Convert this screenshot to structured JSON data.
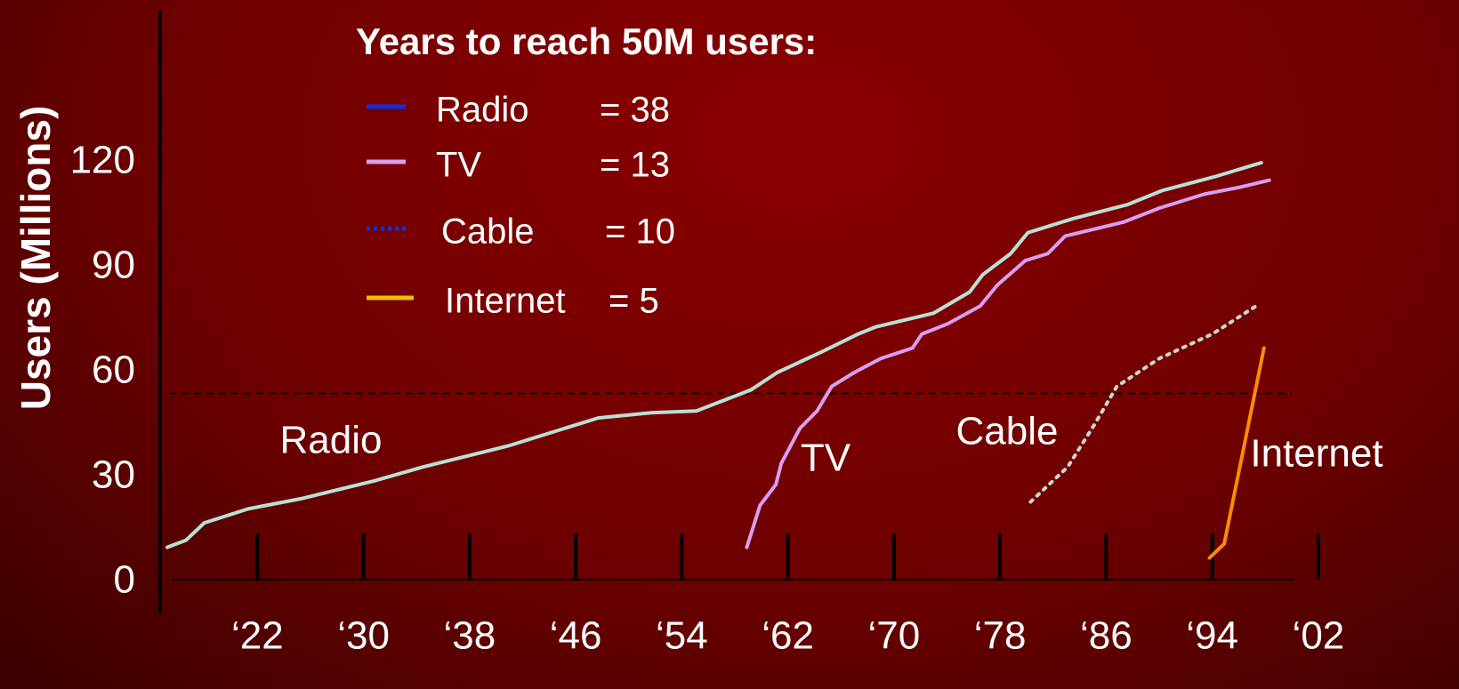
{
  "chart_data": {
    "type": "line",
    "legend_title": "Years to reach 50M users:",
    "ylabel": "Users (Millions)",
    "xlim": [
      1915,
      2001
    ],
    "ylim": [
      0,
      120
    ],
    "yticks": [
      0,
      30,
      60,
      90,
      120
    ],
    "xticks": [
      {
        "value": 1922,
        "label": "‘22"
      },
      {
        "value": 1930,
        "label": "‘30"
      },
      {
        "value": 1938,
        "label": "‘38"
      },
      {
        "value": 1946,
        "label": "‘46"
      },
      {
        "value": 1954,
        "label": "‘54"
      },
      {
        "value": 1962,
        "label": "‘62"
      },
      {
        "value": 1970,
        "label": "‘70"
      },
      {
        "value": 1978,
        "label": "‘78"
      },
      {
        "value": 1986,
        "label": "‘86"
      },
      {
        "value": 1994,
        "label": "‘94"
      },
      {
        "value": 2002,
        "label": "‘02"
      }
    ],
    "reference_line": 54,
    "series": [
      {
        "name": "Radio",
        "legend_value": "= 38",
        "color": "#b8e0d8",
        "legend_color": "#1030e0",
        "dash": false,
        "x": [
          1915.2,
          1916.6,
          1918,
          1921.3,
          1925.4,
          1930.8,
          1934.5,
          1940.9,
          1947.7,
          1951.7,
          1955.1,
          1959.2,
          1961.2,
          1964.6,
          1967.3,
          1968.6,
          1973,
          1975.7,
          1976.7,
          1978.8,
          1980.1,
          1983.5,
          1987.6,
          1990.2,
          1994.2,
          1997.7
        ],
        "values": [
          10,
          12,
          17,
          21,
          24,
          29,
          33,
          39,
          47,
          48.5,
          49,
          55,
          60,
          66,
          71,
          73,
          77,
          83,
          88,
          94,
          100,
          104,
          108,
          112,
          116,
          120
        ]
      },
      {
        "name": "TV",
        "legend_value": "= 13",
        "color": "#d89ef0",
        "legend_color": "#d89ef0",
        "dash": false,
        "x": [
          1958.9,
          1959.9,
          1961.1,
          1961.5,
          1962.9,
          1964.2,
          1965.3,
          1967,
          1969,
          1971.4,
          1972.1,
          1974.1,
          1976.5,
          1977.8,
          1979.9,
          1981.6,
          1982.9,
          1987.3,
          1990,
          1993.4,
          1996.1,
          1998.3
        ],
        "values": [
          10,
          22,
          28,
          34,
          44,
          49,
          56,
          60,
          64,
          67,
          71,
          74,
          79,
          85,
          92,
          94,
          99,
          103,
          107,
          111,
          113,
          115
        ]
      },
      {
        "name": "Cable",
        "legend_value": "= 10",
        "color": "#c8d8d0",
        "legend_color": "#1030e0",
        "dash": true,
        "x": [
          1980.3,
          1983.1,
          1985.1,
          1986.8,
          1990,
          1994,
          1997.3
        ],
        "values": [
          23,
          33,
          45,
          56,
          64,
          71,
          79
        ]
      },
      {
        "name": "Internet",
        "legend_value": "= 5",
        "color": "#ff8c00",
        "legend_color": "#f0c000",
        "dash": false,
        "x": [
          1993.8,
          1994.9,
          1997.9
        ],
        "values": [
          7,
          11,
          67
        ]
      }
    ]
  }
}
